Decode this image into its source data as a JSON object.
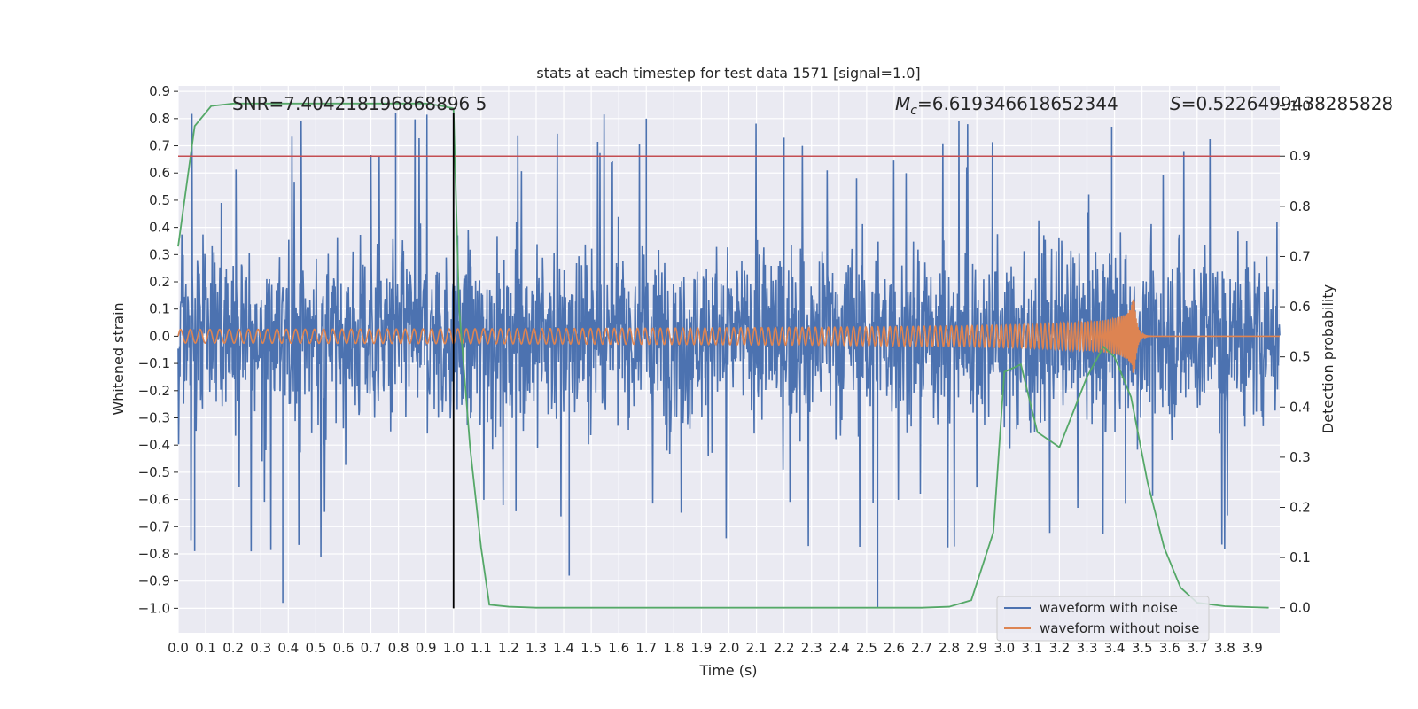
{
  "chart_data": {
    "type": "line",
    "title": "stats at each timestep for test data 1571 [signal=1.0]",
    "xlabel": "Time (s)",
    "ylabel": "Whitened strain",
    "y2label": "Detection probability",
    "xlim": [
      0.0,
      4.0
    ],
    "ylim": [
      -1.09,
      0.92
    ],
    "y2lim": [
      -0.05,
      1.04
    ],
    "x_ticks": [
      "0.0",
      "0.1",
      "0.2",
      "0.3",
      "0.4",
      "0.5",
      "0.6",
      "0.7",
      "0.8",
      "0.9",
      "1.0",
      "1.1",
      "1.2",
      "1.3",
      "1.4",
      "1.5",
      "1.6",
      "1.7",
      "1.8",
      "1.9",
      "2.0",
      "2.1",
      "2.2",
      "2.3",
      "2.4",
      "2.5",
      "2.6",
      "2.7",
      "2.8",
      "2.9",
      "3.0",
      "3.1",
      "3.2",
      "3.3",
      "3.4",
      "3.5",
      "3.6",
      "3.7",
      "3.8",
      "3.9"
    ],
    "y_ticks": [
      "0.9",
      "0.8",
      "0.7",
      "0.6",
      "0.5",
      "0.4",
      "0.3",
      "0.2",
      "0.1",
      "0.0",
      "−0.1",
      "−0.2",
      "−0.3",
      "−0.4",
      "−0.5",
      "−0.6",
      "−0.7",
      "−0.8",
      "−0.9",
      "−1.0"
    ],
    "y2_ticks": [
      "1.0",
      "0.9",
      "0.8",
      "0.7",
      "0.6",
      "0.5",
      "0.4",
      "0.3",
      "0.2",
      "0.1",
      "0.0"
    ],
    "annotations": {
      "snr": "SNR=7.404218196868896 5",
      "mc_symbol": "M",
      "mc_sub": "c",
      "mc_value": "=6.619346618652344",
      "s_symbol": "S",
      "s_value": "=0.5226499438285828"
    },
    "threshold_line": {
      "axis": "right",
      "value": 0.9,
      "color": "#c44e52"
    },
    "vertical_marker": {
      "x": 1.0,
      "y_from": -1.0,
      "y_to": 0.82,
      "color": "#000000"
    },
    "legend": {
      "placement": "lower-right",
      "entries": [
        {
          "label": "waveform with noise",
          "color": "#4c72b0"
        },
        {
          "label": "waveform without noise",
          "color": "#dd8452"
        }
      ]
    },
    "series": [
      {
        "name": "waveform with noise",
        "axis": "left",
        "color": "#4c72b0",
        "description": "noisy whitened strain, amplitude mostly within ±0.5 with spikes to about ±0.8, min near -1.0",
        "amplitude_envelope": 0.5,
        "spike_max": 0.82,
        "spike_min": -1.0
      },
      {
        "name": "waveform without noise",
        "axis": "left",
        "color": "#dd8452",
        "description": "chirp signal growing in amplitude and frequency until merger near t=3.47 s",
        "x_start": 0.0,
        "x_merger": 3.47,
        "initial_amplitude": 0.025,
        "peak_amplitude": 0.17
      },
      {
        "name": "detection probability",
        "axis": "right",
        "color": "#55a868",
        "x": [
          0.0,
          0.06,
          0.12,
          0.2,
          0.3,
          0.4,
          0.5,
          0.6,
          0.7,
          0.8,
          0.9,
          0.96,
          1.0,
          1.02,
          1.06,
          1.1,
          1.13,
          1.2,
          1.3,
          1.5,
          2.0,
          2.5,
          2.7,
          2.8,
          2.88,
          2.96,
          3.0,
          3.06,
          3.12,
          3.2,
          3.3,
          3.36,
          3.4,
          3.46,
          3.52,
          3.58,
          3.64,
          3.7,
          3.8,
          3.9,
          3.96
        ],
        "values": [
          0.72,
          0.96,
          1.0,
          1.005,
          1.005,
          1.005,
          1.005,
          1.005,
          1.005,
          1.005,
          1.005,
          1.0,
          0.995,
          0.6,
          0.32,
          0.12,
          0.006,
          0.002,
          0.0,
          0.0,
          0.0,
          0.0,
          0.0,
          0.002,
          0.015,
          0.15,
          0.47,
          0.485,
          0.35,
          0.32,
          0.46,
          0.52,
          0.5,
          0.42,
          0.25,
          0.12,
          0.04,
          0.01,
          0.003,
          0.001,
          0.0
        ]
      }
    ]
  }
}
